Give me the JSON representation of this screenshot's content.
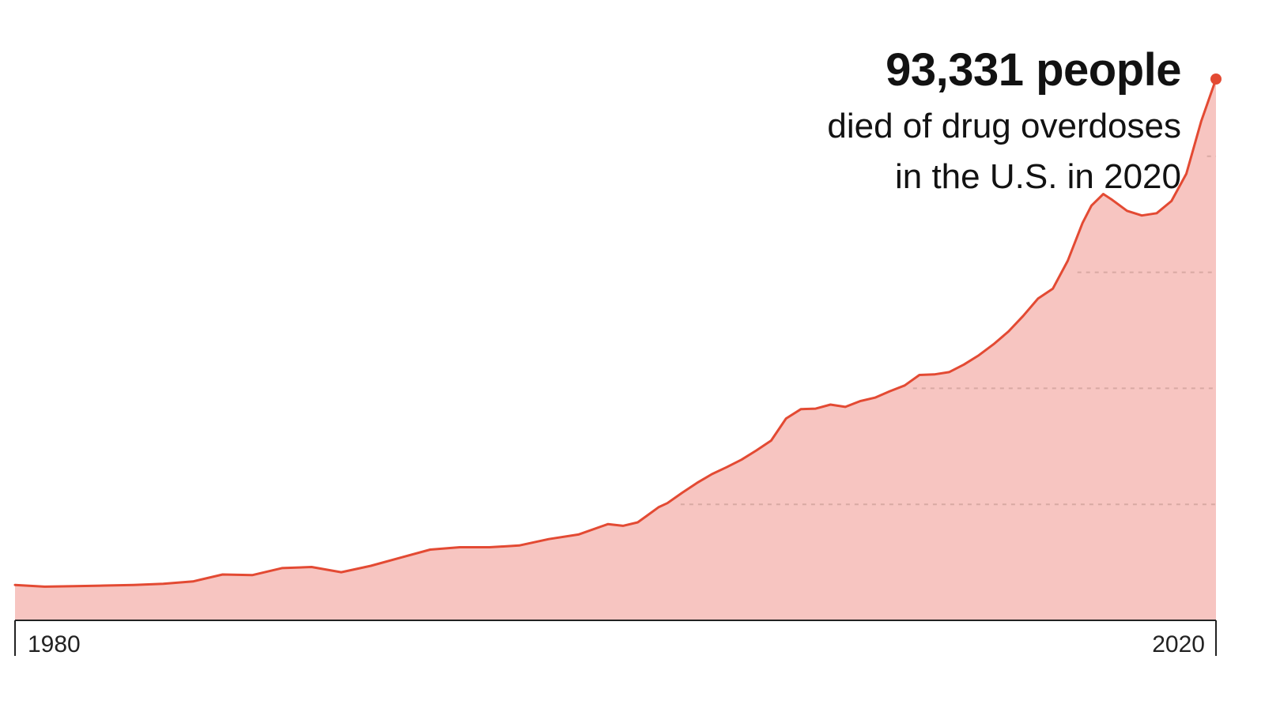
{
  "annotation": {
    "headline": "93,331 people",
    "line1": "died of drug overdoses",
    "line2": "in the U.S. in 2020"
  },
  "colors": {
    "line": "#e34a33",
    "area": "#f7c5c1",
    "grid": "#d8a9a3",
    "axis": "#222222"
  },
  "chart_data": {
    "type": "area",
    "title": "",
    "xlabel": "",
    "ylabel": "",
    "x_tick_labels": [
      "1980",
      "2020"
    ],
    "xlim": [
      1980,
      2020.5
    ],
    "ylim": [
      0,
      93331
    ],
    "grid": "horizontal dashed lines at 20,000 intervals",
    "highlight_point": {
      "x": 2020.5,
      "y": 93331
    },
    "series": [
      {
        "x": [
          1980,
          1981,
          1982,
          1983,
          1984,
          1985,
          1986,
          1987,
          1988,
          1989,
          1990,
          1991,
          1992,
          1993,
          1994,
          1995,
          1996,
          1997,
          1998,
          1999,
          2000,
          2000.5,
          2001,
          2001.3,
          2001.7,
          2002,
          2002.5,
          2003,
          2003.5,
          2004,
          2004.5,
          2005,
          2005.5,
          2006,
          2006.5,
          2007,
          2007.5,
          2008,
          2008.5,
          2009,
          2009.5,
          2010,
          2010.5,
          2011,
          2011.5,
          2012,
          2012.5,
          2013,
          2013.5,
          2014,
          2014.5,
          2015,
          2015.5,
          2016,
          2016.3,
          2016.7,
          2017,
          2017.5,
          2018,
          2018.5,
          2019,
          2019.5,
          2020,
          2020.5
        ],
        "y": [
          6100,
          5800,
          5900,
          6000,
          6100,
          6300,
          6700,
          7900,
          7800,
          9000,
          9200,
          8300,
          9400,
          10800,
          12200,
          12600,
          12600,
          12900,
          14000,
          14800,
          16600,
          16300,
          16900,
          18000,
          19500,
          20200,
          22000,
          23700,
          25200,
          26400,
          27700,
          29300,
          31000,
          34800,
          36400,
          36500,
          37200,
          36800,
          37800,
          38400,
          39500,
          40500,
          42300,
          42400,
          42800,
          44100,
          45700,
          47600,
          49800,
          52500,
          55500,
          57200,
          62000,
          68500,
          71500,
          73500,
          72500,
          70600,
          69800,
          70200,
          72300,
          77000,
          86000,
          93331
        ]
      }
    ]
  }
}
